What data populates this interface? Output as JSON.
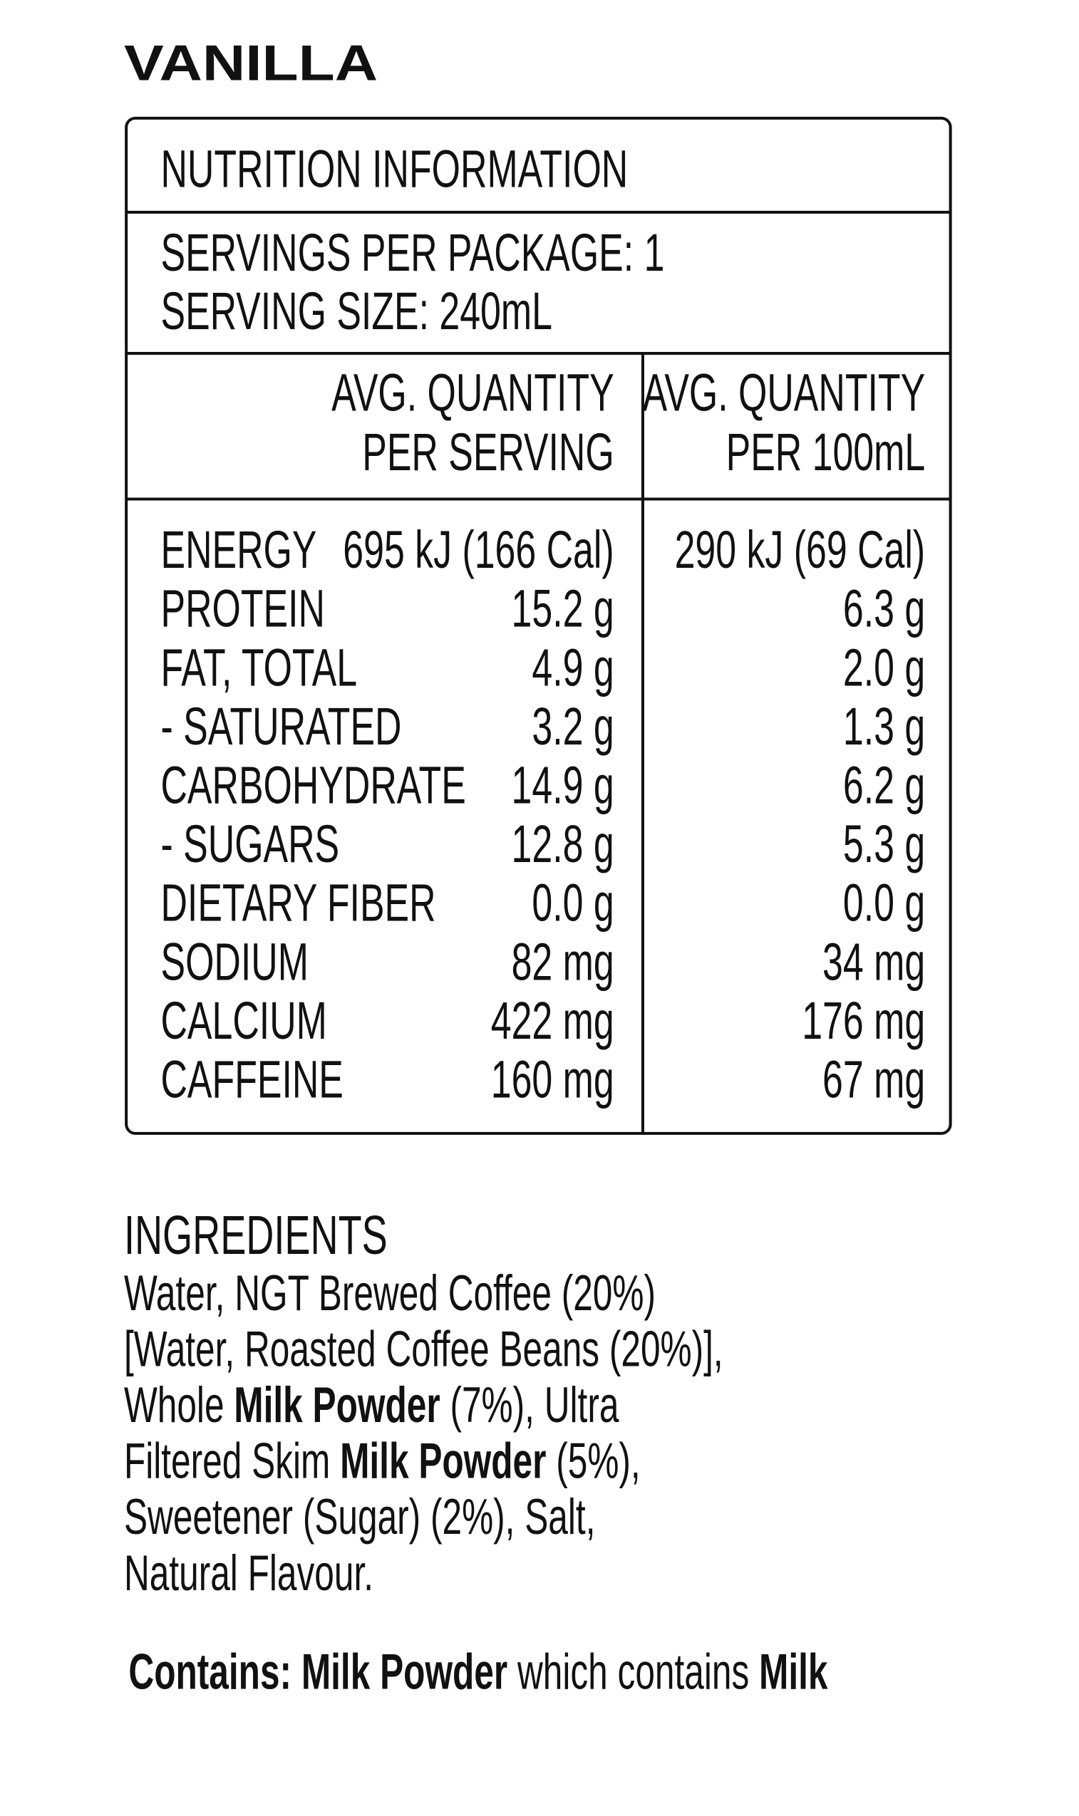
{
  "title": "VANILLA",
  "panel": {
    "heading": "NUTRITION INFORMATION",
    "servings": [
      "SERVINGS PER PACKAGE: 1",
      "SERVING SIZE: 240mL"
    ],
    "columns": [
      [
        "AVG. QUANTITY",
        "PER SERVING"
      ],
      [
        "AVG. QUANTITY",
        "PER 100mL"
      ]
    ],
    "rows": [
      [
        "ENERGY",
        "695 kJ (166 Cal)",
        "290 kJ (69 Cal)"
      ],
      [
        "PROTEIN",
        "15.2 g",
        "6.3 g"
      ],
      [
        "FAT, TOTAL",
        "4.9 g",
        "2.0 g"
      ],
      [
        "- SATURATED",
        "3.2 g",
        "1.3 g"
      ],
      [
        "CARBOHYDRATE",
        "14.9 g",
        "6.2 g"
      ],
      [
        "- SUGARS",
        "12.8 g",
        "5.3 g"
      ],
      [
        "DIETARY FIBER",
        "0.0 g",
        "0.0 g"
      ],
      [
        "SODIUM",
        "82 mg",
        "34 mg"
      ],
      [
        "CALCIUM",
        "422 mg",
        "176 mg"
      ],
      [
        "CAFFEINE",
        "160 mg",
        "67 mg"
      ]
    ]
  },
  "ingredients": {
    "heading": "INGREDIENTS",
    "lines": [
      [
        {
          "text": "Water, NGT Brewed Coffee (20%)",
          "bold": false
        }
      ],
      [
        {
          "text": "[Water, Roasted Coffee Beans (20%)],",
          "bold": false
        }
      ],
      [
        {
          "text": "Whole ",
          "bold": false
        },
        {
          "text": "Milk Powder",
          "bold": true
        },
        {
          "text": " (7%), Ultra",
          "bold": false
        }
      ],
      [
        {
          "text": "Filtered Skim ",
          "bold": false
        },
        {
          "text": "Milk Powder",
          "bold": true
        },
        {
          "text": " (5%),",
          "bold": false
        }
      ],
      [
        {
          "text": "Sweetener (Sugar) (2%), Salt,",
          "bold": false
        }
      ],
      [
        {
          "text": "Natural Flavour.",
          "bold": false
        }
      ]
    ]
  },
  "contains": [
    {
      "text": "Contains: Milk Powder",
      "bold": true
    },
    {
      "text": " which contains ",
      "bold": false
    },
    {
      "text": "Milk",
      "bold": true
    }
  ]
}
